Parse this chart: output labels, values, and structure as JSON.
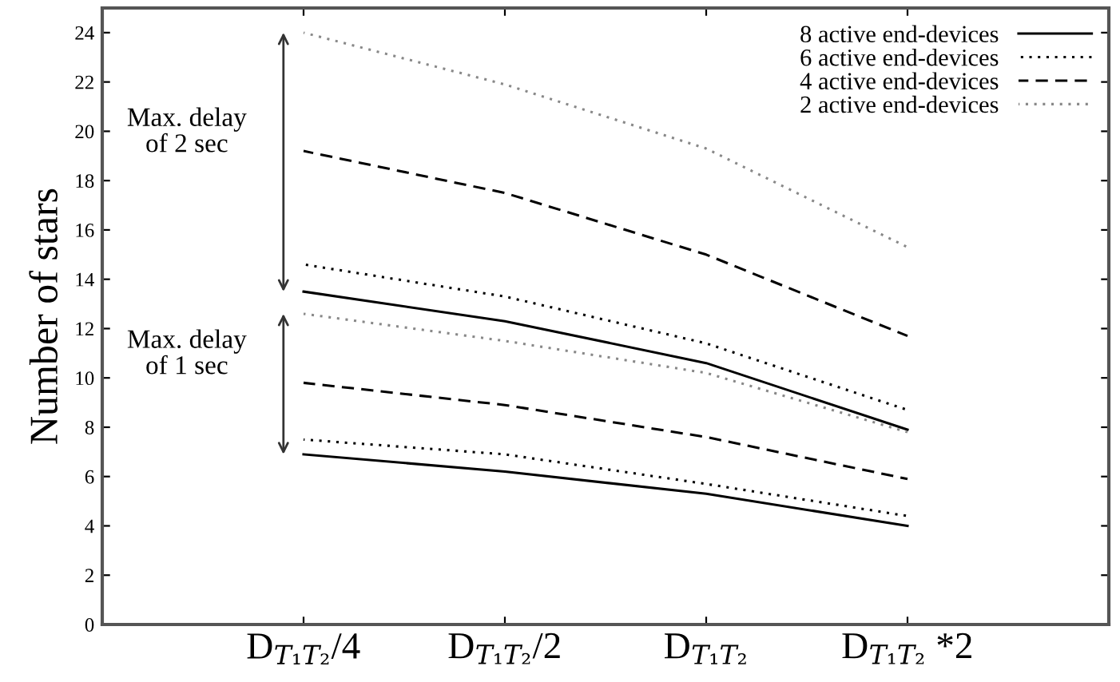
{
  "chart_data": {
    "type": "line",
    "ylabel": "Number of stars",
    "categories": [
      "D$_{T₁T₂}$/4",
      "D$_{T₁T₂}$/2",
      "D$_{T₁T₂}$",
      "D$_{T₁T₂}$ *2"
    ],
    "ylim": [
      0,
      25
    ],
    "yticks": [
      0,
      2,
      4,
      6,
      8,
      10,
      12,
      14,
      16,
      18,
      20,
      22,
      24
    ],
    "grid": false,
    "legend": "top right",
    "marker": "none",
    "annotations": [
      "Max. delay\nof 2 sec",
      "Max. delay\nof 1 sec"
    ],
    "series": [
      {
        "name": "8 active end-devices",
        "color": "#000000",
        "line_style": "solid",
        "values": [
          13.5,
          12.3,
          10.6,
          7.9
        ]
      },
      {
        "name": "6 active end-devices",
        "color": "#000000",
        "line_style": "dotted",
        "values": [
          14.6,
          13.3,
          11.4,
          8.7
        ]
      },
      {
        "name": "4 active end-devices",
        "color": "#000000",
        "line_style": "dashed",
        "values": [
          19.2,
          17.5,
          15.0,
          11.7
        ]
      },
      {
        "name": "2 active end-devices",
        "color": "#888888",
        "line_style": "dotted",
        "values": [
          24.0,
          21.9,
          19.3,
          15.3
        ]
      },
      {
        "color": "#000000",
        "line_style": "solid",
        "values": [
          6.9,
          6.2,
          5.3,
          4.0
        ]
      },
      {
        "color": "#000000",
        "line_style": "dotted",
        "values": [
          7.5,
          6.9,
          5.7,
          4.4
        ]
      },
      {
        "color": "#000000",
        "line_style": "dashed",
        "values": [
          9.8,
          8.9,
          7.6,
          5.9
        ]
      },
      {
        "color": "#888888",
        "line_style": "dotted",
        "values": [
          12.6,
          11.5,
          10.2,
          7.8
        ]
      }
    ]
  }
}
